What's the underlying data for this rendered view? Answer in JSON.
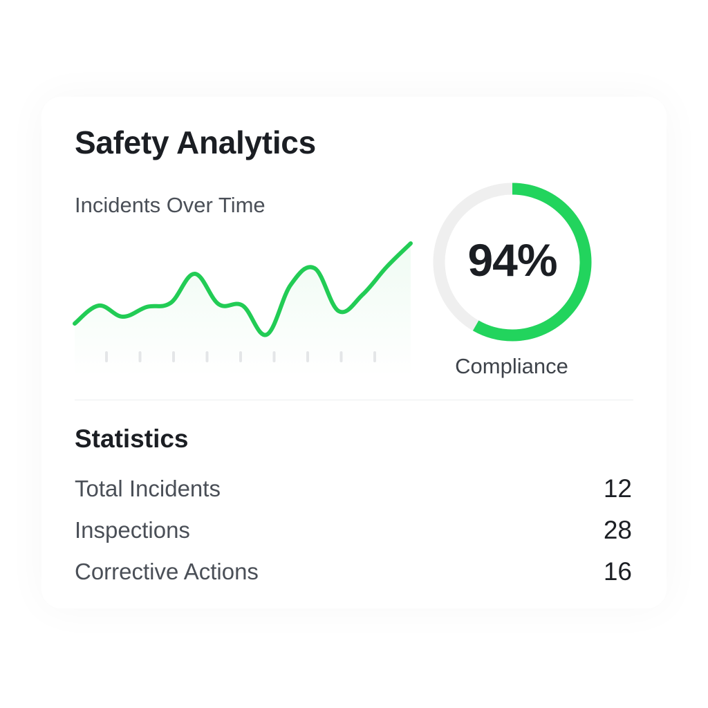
{
  "header": {
    "title": "Safety Analytics"
  },
  "chart": {
    "label": "Incidents Over Time"
  },
  "chart_data": {
    "type": "area",
    "title": "Incidents Over Time",
    "xlabel": "",
    "ylabel": "",
    "x_tick_count": 9,
    "grid": false,
    "y": [
      2.1,
      3.4,
      2.6,
      3.3,
      3.6,
      5.7,
      3.5,
      3.4,
      1.3,
      4.9,
      6.1,
      3.0,
      4.2,
      6.2,
      7.9
    ],
    "ylim": [
      0,
      10
    ],
    "line_color": "#22cc55"
  },
  "compliance": {
    "value": 94,
    "value_label": "94%",
    "label": "Compliance",
    "color": "#22d45d",
    "track_color": "#efefef"
  },
  "statistics": {
    "title": "Statistics",
    "rows": [
      {
        "label": "Total Incidents",
        "value": "12"
      },
      {
        "label": "Inspections",
        "value": "28"
      },
      {
        "label": "Corrective Actions",
        "value": "16"
      }
    ]
  }
}
